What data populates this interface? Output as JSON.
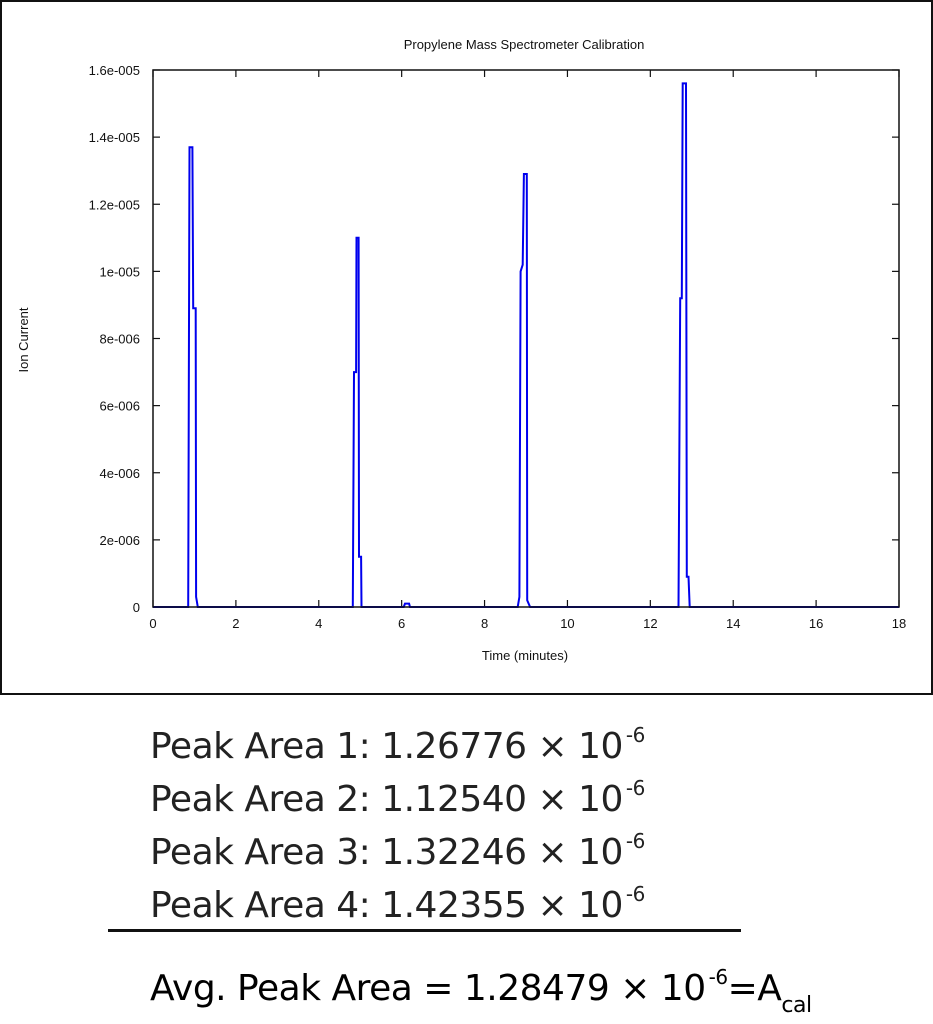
{
  "chart_data": {
    "type": "line",
    "title": "Propylene Mass Spectrometer Calibration",
    "xlabel": "Time (minutes)",
    "ylabel": "Ion Current",
    "xlim": [
      0,
      18
    ],
    "ylim": [
      0,
      1.6e-05
    ],
    "xticks": [
      0,
      2,
      4,
      6,
      8,
      10,
      12,
      14,
      16,
      18
    ],
    "xtick_labels": [
      "0",
      "2",
      "4",
      "6",
      "8",
      "10",
      "12",
      "14",
      "16",
      "18"
    ],
    "yticks": [
      0,
      2e-06,
      4e-06,
      6e-06,
      8e-06,
      1e-05,
      1.2e-05,
      1.4e-05,
      1.6e-05
    ],
    "ytick_labels": [
      "0",
      "2e-006",
      "4e-006",
      "6e-006",
      "8e-006",
      "1e-005",
      "1.2e-005",
      "1.4e-005",
      "1.6e-005"
    ],
    "grid": false,
    "series": [
      {
        "color": "#0000ee",
        "points": [
          [
            0,
            0
          ],
          [
            0.85,
            0
          ],
          [
            0.88,
            1.37e-05
          ],
          [
            0.95,
            1.37e-05
          ],
          [
            0.97,
            8.9e-06
          ],
          [
            1.03,
            8.9e-06
          ],
          [
            1.04,
            3e-07
          ],
          [
            1.08,
            0
          ],
          [
            4.82,
            0
          ],
          [
            4.85,
            7e-06
          ],
          [
            4.9,
            7e-06
          ],
          [
            4.91,
            1.1e-05
          ],
          [
            4.96,
            1.1e-05
          ],
          [
            4.97,
            1.5e-06
          ],
          [
            5.02,
            1.5e-06
          ],
          [
            5.03,
            0
          ],
          [
            6.05,
            0
          ],
          [
            6.08,
            1e-07
          ],
          [
            6.18,
            1e-07
          ],
          [
            6.2,
            0
          ],
          [
            8.8,
            0
          ],
          [
            8.84,
            3e-07
          ],
          [
            8.87,
            1e-05
          ],
          [
            8.92,
            1.02e-05
          ],
          [
            8.95,
            1.29e-05
          ],
          [
            9.02,
            1.29e-05
          ],
          [
            9.03,
            2e-07
          ],
          [
            9.1,
            0
          ],
          [
            12.68,
            0
          ],
          [
            12.72,
            9.2e-06
          ],
          [
            12.76,
            9.2e-06
          ],
          [
            12.78,
            1.56e-05
          ],
          [
            12.86,
            1.56e-05
          ],
          [
            12.88,
            9e-07
          ],
          [
            12.92,
            9e-07
          ],
          [
            12.95,
            0
          ],
          [
            18,
            0
          ]
        ]
      }
    ]
  },
  "results": {
    "peak_1_label": "Peak Area 1: 1.26776 × 10",
    "peak_2_label": "Peak Area 2: 1.12540 × 10",
    "peak_3_label": "Peak Area 3: 1.32246 × 10",
    "peak_4_label": "Peak Area 4: 1.42355 × 10",
    "exponent": "-6",
    "avg_label": "Avg. Peak Area = 1.28479 × 10",
    "avg_suffix": "=A",
    "avg_subscript": "cal"
  }
}
